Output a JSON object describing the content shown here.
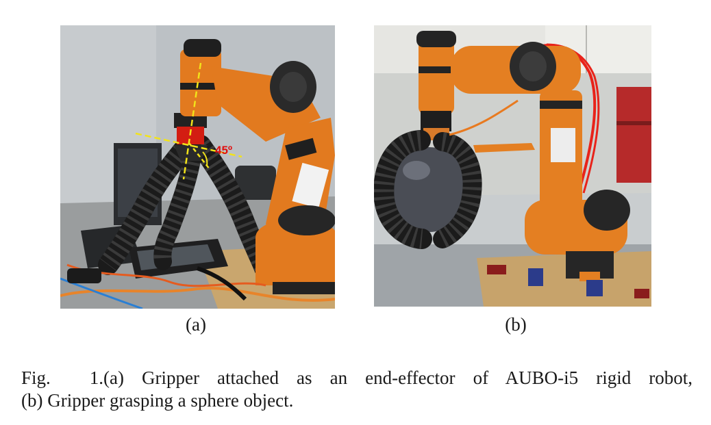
{
  "figure": {
    "panels": [
      {
        "label": "(a)",
        "photo": "soft-gripper-on-aubo-robot-photo",
        "annotation": "45º",
        "colors": {
          "robot_orange": "#e27a1f",
          "annotation_line": "#f2e31a",
          "annotation_text": "#e01010"
        }
      },
      {
        "label": "(b)",
        "photo": "gripper-grasping-sphere-photo",
        "colors": {
          "robot_orange": "#e47f22",
          "tubing": "#e8231a",
          "sphere": "#4a4d55"
        }
      }
    ],
    "caption": {
      "number": "Fig. 1.",
      "line1": "(a) Gripper attached as an end-effector of AUBO-i5 rigid robot,",
      "line2": "(b) Gripper grasping a sphere object."
    }
  }
}
